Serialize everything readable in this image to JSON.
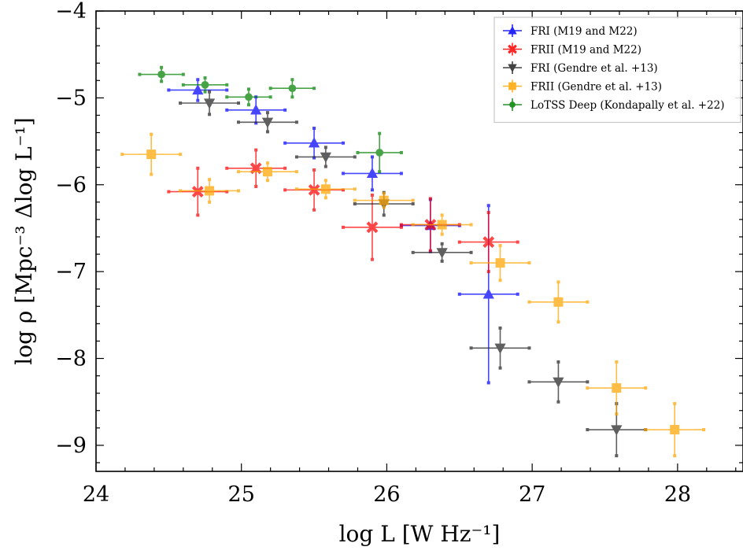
{
  "chart_data": {
    "type": "scatter",
    "error_bars": true,
    "xlabel": "log L [W Hz⁻¹]",
    "ylabel": "log ρ [Mpc⁻³ Δlog L⁻¹]",
    "xlim": [
      24,
      28.45
    ],
    "ylim": [
      -9.3,
      -4
    ],
    "x_ticks": [
      24,
      25,
      26,
      27,
      28
    ],
    "y_ticks": [
      -9,
      -8,
      -7,
      -6,
      -5,
      -4
    ],
    "x_tick_labels": [
      "24",
      "25",
      "26",
      "27",
      "28"
    ],
    "y_tick_labels": [
      "−9",
      "−8",
      "−7",
      "−6",
      "−5",
      "−4"
    ],
    "grid": false,
    "legend_position": "top-right",
    "series": [
      {
        "name": "FRI (M19 and M22)",
        "color": "#0000ff",
        "marker": "triangle-up",
        "points": [
          {
            "x": 24.7,
            "y": -4.91,
            "xerr": 0.2,
            "yerr_low": 0.12,
            "yerr_high": 0.12
          },
          {
            "x": 25.1,
            "y": -5.14,
            "xerr": 0.2,
            "yerr_low": 0.15,
            "yerr_high": 0.15
          },
          {
            "x": 25.5,
            "y": -5.52,
            "xerr": 0.2,
            "yerr_low": 0.17,
            "yerr_high": 0.17
          },
          {
            "x": 25.9,
            "y": -5.87,
            "xerr": 0.2,
            "yerr_low": 0.19,
            "yerr_high": 0.19
          },
          {
            "x": 26.3,
            "y": -6.47,
            "xerr": 0.2,
            "yerr_low": 0.3,
            "yerr_high": 0.3
          },
          {
            "x": 26.7,
            "y": -7.26,
            "xerr": 0.2,
            "yerr_low": 1.02,
            "yerr_high": 1.02
          }
        ]
      },
      {
        "name": "FRII (M19 and M22)",
        "color": "#ff0000",
        "marker": "x-filled",
        "points": [
          {
            "x": 24.7,
            "y": -6.08,
            "xerr": 0.2,
            "yerr_low": 0.27,
            "yerr_high": 0.27
          },
          {
            "x": 25.1,
            "y": -5.81,
            "xerr": 0.2,
            "yerr_low": 0.21,
            "yerr_high": 0.21
          },
          {
            "x": 25.5,
            "y": -6.06,
            "xerr": 0.2,
            "yerr_low": 0.23,
            "yerr_high": 0.23
          },
          {
            "x": 25.9,
            "y": -6.49,
            "xerr": 0.2,
            "yerr_low": 0.37,
            "yerr_high": 0.37
          },
          {
            "x": 26.3,
            "y": -6.46,
            "xerr": 0.2,
            "yerr_low": 0.3,
            "yerr_high": 0.3
          },
          {
            "x": 26.7,
            "y": -6.66,
            "xerr": 0.2,
            "yerr_low": 0.34,
            "yerr_high": 0.34
          }
        ]
      },
      {
        "name": "FRI (Gendre et al. +13)",
        "color": "#222222",
        "marker": "triangle-down",
        "points": [
          {
            "x": 24.78,
            "y": -5.06,
            "xerr": 0.2,
            "yerr_low": 0.13,
            "yerr_high": 0.13
          },
          {
            "x": 25.18,
            "y": -5.28,
            "xerr": 0.2,
            "yerr_low": 0.11,
            "yerr_high": 0.11
          },
          {
            "x": 25.58,
            "y": -5.68,
            "xerr": 0.2,
            "yerr_low": 0.11,
            "yerr_high": 0.11
          },
          {
            "x": 25.98,
            "y": -6.22,
            "xerr": 0.2,
            "yerr_low": 0.13,
            "yerr_high": 0.13
          },
          {
            "x": 26.38,
            "y": -6.78,
            "xerr": 0.2,
            "yerr_low": 0.1,
            "yerr_high": 0.1
          },
          {
            "x": 26.78,
            "y": -7.88,
            "xerr": 0.2,
            "yerr_low": 0.23,
            "yerr_high": 0.23
          },
          {
            "x": 27.18,
            "y": -8.27,
            "xerr": 0.2,
            "yerr_low": 0.23,
            "yerr_high": 0.23
          },
          {
            "x": 27.58,
            "y": -8.82,
            "xerr": 0.2,
            "yerr_low": 0.3,
            "yerr_high": 0.3
          }
        ]
      },
      {
        "name": "FRII (Gendre et al. +13)",
        "color": "#ffa500",
        "marker": "square",
        "points": [
          {
            "x": 24.38,
            "y": -5.65,
            "xerr": 0.2,
            "yerr_low": 0.23,
            "yerr_high": 0.23
          },
          {
            "x": 24.78,
            "y": -6.07,
            "xerr": 0.2,
            "yerr_low": 0.13,
            "yerr_high": 0.13
          },
          {
            "x": 25.18,
            "y": -5.85,
            "xerr": 0.2,
            "yerr_low": 0.1,
            "yerr_high": 0.1
          },
          {
            "x": 25.58,
            "y": -6.05,
            "xerr": 0.2,
            "yerr_low": 0.1,
            "yerr_high": 0.1
          },
          {
            "x": 25.98,
            "y": -6.18,
            "xerr": 0.2,
            "yerr_low": 0.08,
            "yerr_high": 0.08
          },
          {
            "x": 26.38,
            "y": -6.46,
            "xerr": 0.2,
            "yerr_low": 0.11,
            "yerr_high": 0.11
          },
          {
            "x": 26.78,
            "y": -6.9,
            "xerr": 0.2,
            "yerr_low": 0.2,
            "yerr_high": 0.2
          },
          {
            "x": 27.18,
            "y": -7.35,
            "xerr": 0.2,
            "yerr_low": 0.23,
            "yerr_high": 0.23
          },
          {
            "x": 27.58,
            "y": -8.34,
            "xerr": 0.2,
            "yerr_low": 0.3,
            "yerr_high": 0.3
          },
          {
            "x": 27.98,
            "y": -8.82,
            "xerr": 0.2,
            "yerr_low": 0.3,
            "yerr_high": 0.3
          }
        ]
      },
      {
        "name": "LoTSS Deep (Kondapally et al. +22)",
        "color": "#008000",
        "marker": "circle",
        "points": [
          {
            "x": 24.45,
            "y": -4.73,
            "xerr": 0.15,
            "yerr_low": 0.08,
            "yerr_high": 0.08
          },
          {
            "x": 24.75,
            "y": -4.85,
            "xerr": 0.15,
            "yerr_low": 0.08,
            "yerr_high": 0.08
          },
          {
            "x": 25.05,
            "y": -4.99,
            "xerr": 0.15,
            "yerr_low": 0.09,
            "yerr_high": 0.09
          },
          {
            "x": 25.35,
            "y": -4.89,
            "xerr": 0.15,
            "yerr_low": 0.1,
            "yerr_high": 0.1
          },
          {
            "x": 25.95,
            "y": -5.63,
            "xerr": 0.15,
            "yerr_low": 0.22,
            "yerr_high": 0.22
          }
        ]
      }
    ]
  }
}
